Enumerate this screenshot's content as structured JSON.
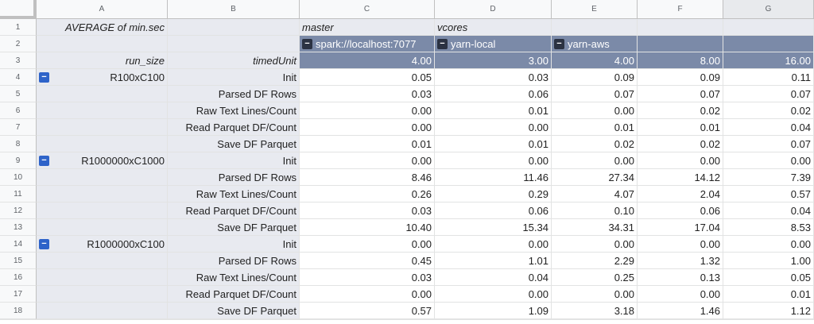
{
  "columns": [
    "A",
    "B",
    "C",
    "D",
    "E",
    "F",
    "G"
  ],
  "header": {
    "row1": {
      "a": "AVERAGE of min.sec",
      "c": "master",
      "d": "vcores"
    },
    "row2": {
      "c": "spark://localhost:7077",
      "d": "yarn-local",
      "e": "yarn-aws"
    },
    "row3": {
      "a": "run_size",
      "b": "timedUnit",
      "c": "4.00",
      "d": "3.00",
      "e": "4.00",
      "f": "8.00",
      "g": "16.00"
    }
  },
  "rows": [
    {
      "num": "4",
      "run_size": "R100xC100",
      "unit": "Init",
      "vals": [
        "0.05",
        "0.03",
        "0.09",
        "0.09",
        "0.11"
      ]
    },
    {
      "num": "5",
      "run_size": "",
      "unit": "Parsed DF Rows",
      "vals": [
        "0.03",
        "0.06",
        "0.07",
        "0.07",
        "0.07"
      ]
    },
    {
      "num": "6",
      "run_size": "",
      "unit": "Raw Text Lines/Count",
      "vals": [
        "0.00",
        "0.01",
        "0.00",
        "0.02",
        "0.02"
      ]
    },
    {
      "num": "7",
      "run_size": "",
      "unit": "Read Parquet DF/Count",
      "vals": [
        "0.00",
        "0.00",
        "0.01",
        "0.01",
        "0.04"
      ]
    },
    {
      "num": "8",
      "run_size": "",
      "unit": "Save DF Parquet",
      "vals": [
        "0.01",
        "0.01",
        "0.02",
        "0.02",
        "0.07"
      ]
    },
    {
      "num": "9",
      "run_size": "R1000000xC1000",
      "unit": "Init",
      "vals": [
        "0.00",
        "0.00",
        "0.00",
        "0.00",
        "0.00"
      ]
    },
    {
      "num": "10",
      "run_size": "",
      "unit": "Parsed DF Rows",
      "vals": [
        "8.46",
        "11.46",
        "27.34",
        "14.12",
        "7.39"
      ]
    },
    {
      "num": "11",
      "run_size": "",
      "unit": "Raw Text Lines/Count",
      "vals": [
        "0.26",
        "0.29",
        "4.07",
        "2.04",
        "0.57"
      ]
    },
    {
      "num": "12",
      "run_size": "",
      "unit": "Read Parquet DF/Count",
      "vals": [
        "0.03",
        "0.06",
        "0.10",
        "0.06",
        "0.04"
      ]
    },
    {
      "num": "13",
      "run_size": "",
      "unit": "Save DF Parquet",
      "vals": [
        "10.40",
        "15.34",
        "34.31",
        "17.04",
        "8.53"
      ]
    },
    {
      "num": "14",
      "run_size": "R1000000xC100",
      "unit": "Init",
      "vals": [
        "0.00",
        "0.00",
        "0.00",
        "0.00",
        "0.00"
      ]
    },
    {
      "num": "15",
      "run_size": "",
      "unit": "Parsed DF Rows",
      "vals": [
        "0.45",
        "1.01",
        "2.29",
        "1.32",
        "1.00"
      ]
    },
    {
      "num": "16",
      "run_size": "",
      "unit": "Raw Text Lines/Count",
      "vals": [
        "0.03",
        "0.04",
        "0.25",
        "0.13",
        "0.05"
      ]
    },
    {
      "num": "17",
      "run_size": "",
      "unit": "Read Parquet DF/Count",
      "vals": [
        "0.00",
        "0.00",
        "0.00",
        "0.00",
        "0.01"
      ]
    },
    {
      "num": "18",
      "run_size": "",
      "unit": "Save DF Parquet",
      "vals": [
        "0.57",
        "1.09",
        "3.18",
        "1.46",
        "1.12"
      ]
    }
  ],
  "toggle_symbol": "−",
  "colors": {
    "label_bg": "#e8eaf0",
    "dark_header": "#7b8aa8",
    "toggle": "#2b3242",
    "toggle_row": "#2e63c9"
  }
}
